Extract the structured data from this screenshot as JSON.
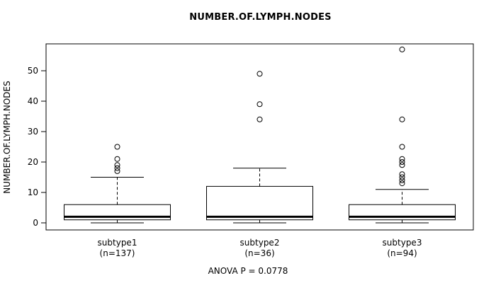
{
  "title": "NUMBER.OF.LYMPH.NODES",
  "annotation": "ANOVA P = 0.0778",
  "chart_data": {
    "type": "boxplot",
    "title": "NUMBER.OF.LYMPH.NODES",
    "ylabel": "NUMBER.OF.LYMPH.NODES",
    "xlabel": "",
    "ylim": [
      0,
      57
    ],
    "yticks": [
      0,
      10,
      20,
      30,
      40,
      50
    ],
    "grid": false,
    "legend": "none",
    "annotation": "ANOVA P = 0.0778",
    "colors": {
      "stroke": "#000000",
      "box_fill": "#ffffff",
      "background": "#ffffff"
    },
    "groups": [
      {
        "label": "subtype1",
        "sublabel": "(n=137)",
        "lower_whisker": 0,
        "q1": 1,
        "median": 2,
        "q3": 6,
        "upper_whisker": 15,
        "outliers": [
          17,
          18,
          19,
          21,
          25
        ]
      },
      {
        "label": "subtype2",
        "sublabel": "(n=36)",
        "lower_whisker": 0,
        "q1": 1,
        "median": 2,
        "q3": 12,
        "upper_whisker": 18,
        "outliers": [
          34,
          39,
          49
        ]
      },
      {
        "label": "subtype3",
        "sublabel": "(n=94)",
        "lower_whisker": 0,
        "q1": 1,
        "median": 2,
        "q3": 6,
        "upper_whisker": 11,
        "outliers": [
          13,
          14,
          15,
          16,
          19,
          20,
          21,
          25,
          34,
          57
        ]
      }
    ]
  }
}
